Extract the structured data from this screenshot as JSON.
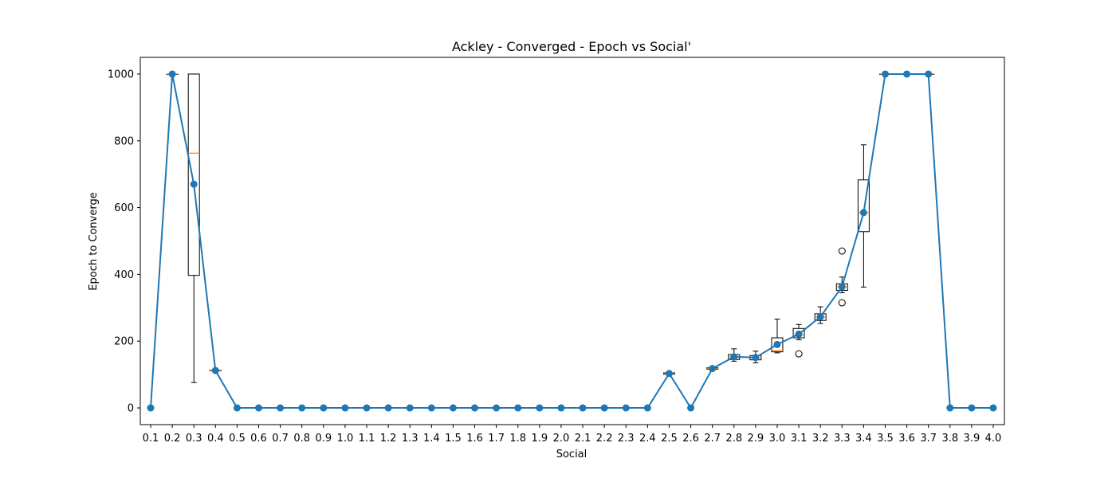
{
  "chart_data": {
    "type": "line",
    "title": "Ackley - Converged - Epoch vs Social'",
    "xlabel": "Social",
    "ylabel": "Epoch to Converge",
    "ylim": [
      -50,
      1050
    ],
    "yticks": [
      0,
      200,
      400,
      600,
      800,
      1000
    ],
    "categories": [
      "0.1",
      "0.2",
      "0.3",
      "0.4",
      "0.5",
      "0.6",
      "0.7",
      "0.8",
      "0.9",
      "1.0",
      "1.1",
      "1.2",
      "1.3",
      "1.4",
      "1.5",
      "1.6",
      "1.7",
      "1.8",
      "1.9",
      "2.0",
      "2.1",
      "2.2",
      "2.3",
      "2.4",
      "2.5",
      "2.6",
      "2.7",
      "2.8",
      "2.9",
      "3.0",
      "3.1",
      "3.2",
      "3.3",
      "3.4",
      "3.5",
      "3.6",
      "3.7",
      "3.8",
      "3.9",
      "4.0"
    ],
    "series": [
      {
        "values": [
          0,
          1000,
          670,
          112,
          0,
          0,
          0,
          0,
          0,
          0,
          0,
          0,
          0,
          0,
          0,
          0,
          0,
          0,
          0,
          0,
          0,
          0,
          0,
          0,
          103,
          0,
          118,
          153,
          151,
          190,
          221,
          273,
          363,
          585,
          1000,
          1000,
          1000,
          0,
          0,
          0
        ]
      }
    ],
    "boxes": [
      {
        "category": "0.2",
        "q1": 1000,
        "median": 1000,
        "q3": 1000,
        "whisker_low": 1000,
        "whisker_high": 1000,
        "outliers": []
      },
      {
        "category": "0.3",
        "q1": 397,
        "median": 763,
        "q3": 1000,
        "whisker_low": 76,
        "whisker_high": 1000,
        "outliers": []
      },
      {
        "category": "0.4",
        "q1": 111,
        "median": 112,
        "q3": 113,
        "whisker_low": 110,
        "whisker_high": 114,
        "outliers": []
      },
      {
        "category": "2.5",
        "q1": 101,
        "median": 103,
        "q3": 105,
        "whisker_low": 100,
        "whisker_high": 106,
        "outliers": []
      },
      {
        "category": "2.7",
        "q1": 116,
        "median": 118,
        "q3": 120,
        "whisker_low": 114,
        "whisker_high": 122,
        "outliers": []
      },
      {
        "category": "2.8",
        "q1": 145,
        "median": 153,
        "q3": 160,
        "whisker_low": 140,
        "whisker_high": 177,
        "outliers": []
      },
      {
        "category": "2.9",
        "q1": 144,
        "median": 150,
        "q3": 157,
        "whisker_low": 135,
        "whisker_high": 170,
        "outliers": []
      },
      {
        "category": "3.0",
        "q1": 168,
        "median": 172,
        "q3": 210,
        "whisker_low": 165,
        "whisker_high": 266,
        "outliers": []
      },
      {
        "category": "3.1",
        "q1": 210,
        "median": 218,
        "q3": 238,
        "whisker_low": 204,
        "whisker_high": 250,
        "outliers": [
          162
        ]
      },
      {
        "category": "3.2",
        "q1": 262,
        "median": 272,
        "q3": 282,
        "whisker_low": 253,
        "whisker_high": 303,
        "outliers": []
      },
      {
        "category": "3.3",
        "q1": 352,
        "median": 363,
        "q3": 372,
        "whisker_low": 345,
        "whisker_high": 392,
        "outliers": [
          470,
          315
        ]
      },
      {
        "category": "3.4",
        "q1": 528,
        "median": 585,
        "q3": 683,
        "whisker_low": 362,
        "whisker_high": 788,
        "outliers": []
      },
      {
        "category": "3.5",
        "q1": 1000,
        "median": 1000,
        "q3": 1000,
        "whisker_low": 1000,
        "whisker_high": 1000,
        "outliers": []
      },
      {
        "category": "3.6",
        "q1": 1000,
        "median": 1000,
        "q3": 1000,
        "whisker_low": 1000,
        "whisker_high": 1000,
        "outliers": []
      },
      {
        "category": "3.7",
        "q1": 1000,
        "median": 1000,
        "q3": 1000,
        "whisker_low": 1000,
        "whisker_high": 1000,
        "outliers": []
      }
    ],
    "colors": {
      "line": "#1f77b4",
      "median": "#ff7f0e",
      "box": "#000000"
    },
    "grid": false,
    "legend": "none"
  }
}
